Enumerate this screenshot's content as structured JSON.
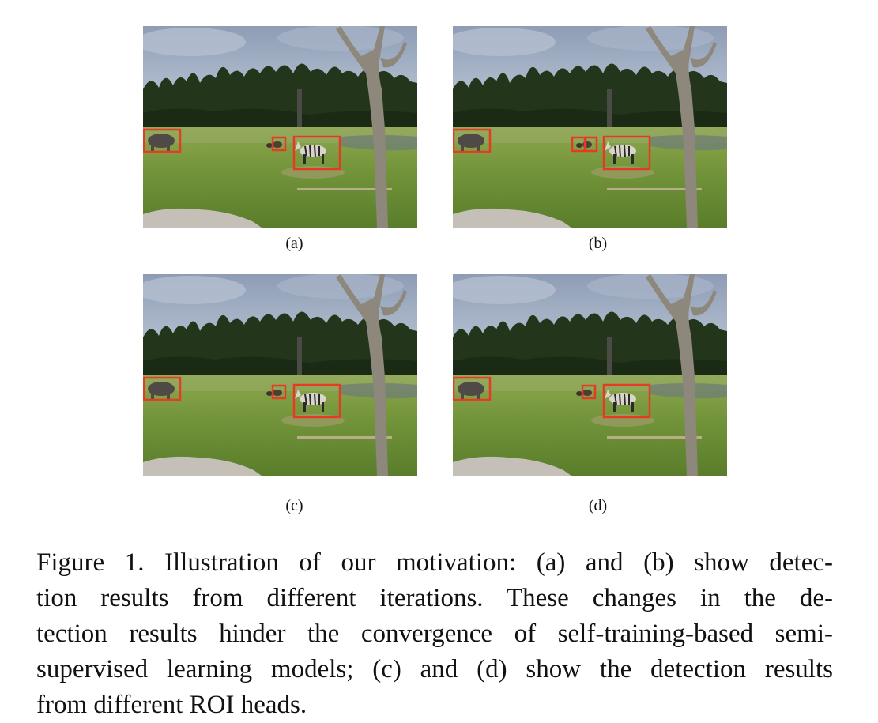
{
  "figure": {
    "panels": [
      {
        "label": "(a)",
        "boxes": [
          "rhino",
          "donkey-small",
          "zebra"
        ]
      },
      {
        "label": "(b)",
        "boxes": [
          "rhino",
          "donkey-left",
          "donkey-right",
          "zebra"
        ]
      },
      {
        "label": "(c)",
        "boxes": [
          "rhino",
          "donkey-small",
          "zebra"
        ]
      },
      {
        "label": "(d)",
        "boxes": [
          "rhino",
          "donkey-small",
          "zebra"
        ]
      }
    ],
    "box_color": "#e53b25",
    "caption_lines": [
      "Figure 1. Illustration of our motivation: (a) and (b) show detec-",
      "tion results from different iterations.  These changes in the de-",
      "tection results hinder the convergence of self-training-based semi-",
      "supervised learning models; (c) and (d) show the detection results",
      "from different ROI heads."
    ]
  }
}
